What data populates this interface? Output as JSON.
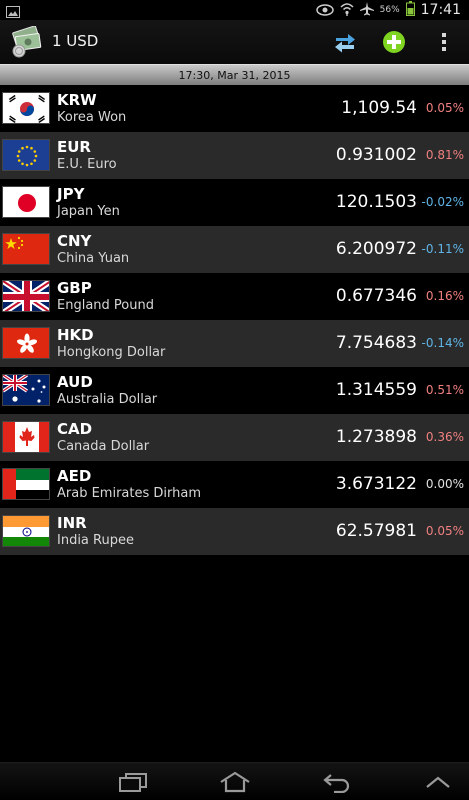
{
  "status_bar": {
    "time": "17:41",
    "battery_percent": "56%",
    "icons": [
      "image-icon",
      "eye-icon",
      "wifi-icon",
      "airplane-mode-icon",
      "battery-icon"
    ]
  },
  "action_bar": {
    "title": "1 USD",
    "icons": [
      "currency-money-icon",
      "swap-icon",
      "add-icon",
      "overflow-menu-icon"
    ],
    "accent_color": "#3a8fcf",
    "add_color": "#7fd321"
  },
  "date_bar": {
    "timestamp": "17:30, Mar 31, 2015"
  },
  "colors": {
    "positive_change": "#f08080",
    "negative_change": "#5fb4e6",
    "neutral_change": "#e0e0e0"
  },
  "currencies": [
    {
      "code": "KRW",
      "name": "Korea Won",
      "rate": "1,109.54",
      "change": "0.05%",
      "trend": "up",
      "flag": "south-korea-flag-icon"
    },
    {
      "code": "EUR",
      "name": "E.U. Euro",
      "rate": "0.931002",
      "change": "0.81%",
      "trend": "up",
      "flag": "european-union-flag-icon"
    },
    {
      "code": "JPY",
      "name": "Japan Yen",
      "rate": "120.1503",
      "change": "-0.02%",
      "trend": "down",
      "flag": "japan-flag-icon"
    },
    {
      "code": "CNY",
      "name": "China Yuan",
      "rate": "6.200972",
      "change": "-0.11%",
      "trend": "down",
      "flag": "china-flag-icon"
    },
    {
      "code": "GBP",
      "name": "England Pound",
      "rate": "0.677346",
      "change": "0.16%",
      "trend": "up",
      "flag": "united-kingdom-flag-icon"
    },
    {
      "code": "HKD",
      "name": "Hongkong Dollar",
      "rate": "7.754683",
      "change": "-0.14%",
      "trend": "down",
      "flag": "hong-kong-flag-icon"
    },
    {
      "code": "AUD",
      "name": "Australia Dollar",
      "rate": "1.314559",
      "change": "0.51%",
      "trend": "up",
      "flag": "australia-flag-icon"
    },
    {
      "code": "CAD",
      "name": "Canada Dollar",
      "rate": "1.273898",
      "change": "0.36%",
      "trend": "up",
      "flag": "canada-flag-icon"
    },
    {
      "code": "AED",
      "name": "Arab Emirates Dirham",
      "rate": "3.673122",
      "change": "0.00%",
      "trend": "flat",
      "flag": "uae-flag-icon"
    },
    {
      "code": "INR",
      "name": "India Rupee",
      "rate": "62.57981",
      "change": "0.05%",
      "trend": "up",
      "flag": "india-flag-icon"
    }
  ],
  "nav_bar": {
    "icons": [
      "recent-apps-icon",
      "home-icon",
      "back-icon",
      "up-chevron-icon"
    ]
  }
}
